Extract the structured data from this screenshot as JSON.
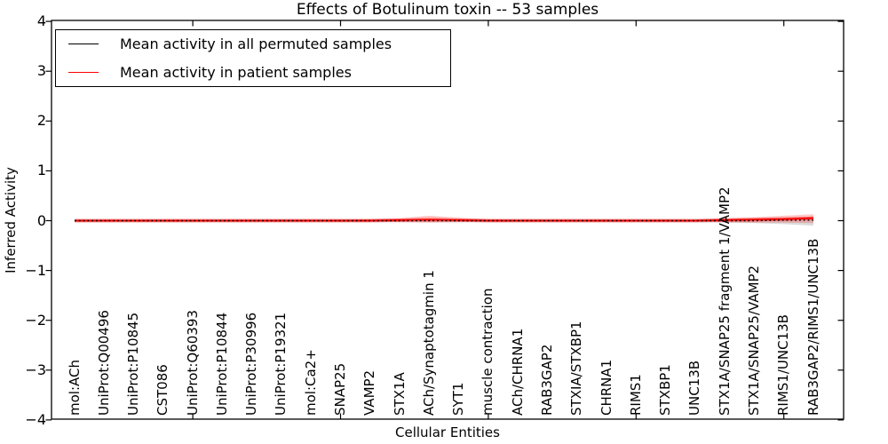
{
  "figure": {
    "title": "Effects of Botulinum toxin -- 53 samples",
    "background": "#ffffff",
    "axis_color": "#000000"
  },
  "axes": {
    "x_label": "Cellular Entities",
    "y_label": "Inferred Activity",
    "y_ticks": [
      {
        "value": 4,
        "label": "4"
      },
      {
        "value": 3,
        "label": "3"
      },
      {
        "value": 2,
        "label": "2"
      },
      {
        "value": 1,
        "label": "1"
      },
      {
        "value": 0,
        "label": "0"
      },
      {
        "value": -1,
        "label": "−1"
      },
      {
        "value": -2,
        "label": "−2"
      },
      {
        "value": -3,
        "label": "−3"
      },
      {
        "value": -4,
        "label": "−4"
      }
    ],
    "x_major_tick_indices": [
      4,
      9,
      14,
      19,
      24
    ]
  },
  "legend": {
    "items": [
      {
        "label": "Mean activity in all permuted samples",
        "color": "#000000"
      },
      {
        "label": "Mean activity in patient samples",
        "color": "#ff0000"
      }
    ]
  },
  "chart_data": {
    "type": "line",
    "title": "Effects of Botulinum toxin -- 53 samples",
    "xlabel": "Cellular Entities",
    "ylabel": "Inferred Activity",
    "ylim": [
      -4,
      4
    ],
    "grid": false,
    "legend_position": "upper left",
    "categories": [
      "mol:ACh",
      "UniProt:Q00496",
      "UniProt:P10845",
      "CST086",
      "UniProt:Q60393",
      "UniProt:P10844",
      "UniProt:P30996",
      "UniProt:P19321",
      "mol:Ca2+",
      "SNAP25",
      "VAMP2",
      "STX1A",
      "ACh/Synaptotagmin 1",
      "SYT1",
      "muscle contraction",
      "ACh/CHRNA1",
      "RAB3GAP2",
      "STXIA/STXBP1",
      "CHRNA1",
      "RIMS1",
      "STXBP1",
      "UNC13B",
      "STX1A/SNAP25 fragment 1/VAMP2",
      "STX1A/SNAP25/VAMP2",
      "RIMS1/UNC13B",
      "RAB3GAP2/RIMS1/UNC13B"
    ],
    "series": [
      {
        "name": "Mean activity in all permuted samples",
        "color": "#000000",
        "linestyle": "dotted",
        "values": [
          0,
          0,
          0,
          0,
          0,
          0,
          0,
          0,
          0,
          0,
          0,
          0,
          0,
          0,
          0,
          0,
          0,
          0,
          0,
          0,
          0,
          0,
          0,
          0,
          0.01,
          0.01
        ]
      },
      {
        "name": "Mean activity in patient samples",
        "color": "#ff0000",
        "linestyle": "solid",
        "values": [
          0,
          0,
          0,
          0,
          0,
          0,
          0,
          0,
          0,
          0,
          0,
          0.01,
          0.02,
          0.01,
          0,
          0,
          0,
          0,
          0,
          0,
          0,
          0,
          0.01,
          0.02,
          0.03,
          0.05
        ]
      }
    ],
    "bands": [
      {
        "name": "Permuted samples range",
        "color": "#b0b0b0",
        "opacity": 0.45,
        "upper": [
          0.03,
          0.03,
          0.03,
          0.03,
          0.03,
          0.03,
          0.03,
          0.03,
          0.03,
          0.03,
          0.03,
          0.03,
          0.03,
          0.03,
          0.03,
          0.03,
          0.03,
          0.03,
          0.03,
          0.03,
          0.03,
          0.03,
          0.04,
          0.05,
          0.06,
          0.08
        ],
        "lower": [
          -0.03,
          -0.03,
          -0.03,
          -0.03,
          -0.03,
          -0.03,
          -0.03,
          -0.03,
          -0.03,
          -0.03,
          -0.03,
          -0.03,
          -0.03,
          -0.03,
          -0.03,
          -0.03,
          -0.03,
          -0.03,
          -0.03,
          -0.03,
          -0.03,
          -0.03,
          -0.04,
          -0.05,
          -0.07,
          -0.1
        ]
      },
      {
        "name": "Patient samples range",
        "color": "#ff0000",
        "opacity": 0.22,
        "upper": [
          0.02,
          0.02,
          0.02,
          0.02,
          0.02,
          0.02,
          0.02,
          0.02,
          0.02,
          0.02,
          0.03,
          0.05,
          0.1,
          0.06,
          0.03,
          0.02,
          0.02,
          0.02,
          0.02,
          0.02,
          0.02,
          0.02,
          0.05,
          0.07,
          0.1,
          0.13
        ],
        "lower": [
          -0.02,
          -0.02,
          -0.02,
          -0.02,
          -0.02,
          -0.02,
          -0.02,
          -0.02,
          -0.02,
          -0.02,
          -0.02,
          -0.03,
          -0.04,
          -0.03,
          -0.02,
          -0.02,
          -0.02,
          -0.02,
          -0.02,
          -0.02,
          -0.02,
          -0.02,
          -0.03,
          -0.04,
          -0.04,
          -0.05
        ]
      }
    ]
  }
}
